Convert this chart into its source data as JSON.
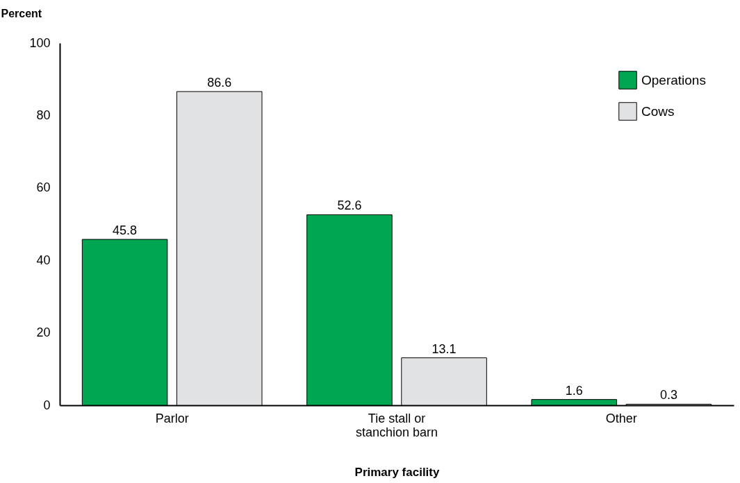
{
  "chart_data": {
    "type": "bar",
    "xlabel": "Primary facility",
    "ylabel": "Percent",
    "categories": [
      "Parlor",
      "Tie stall or stanchion barn",
      "Other"
    ],
    "series": [
      {
        "name": "Operations",
        "color": "#00a651",
        "values": [
          45.8,
          52.6,
          1.6
        ]
      },
      {
        "name": "Cows",
        "color": "#e1e2e4",
        "values": [
          86.6,
          13.1,
          0.3
        ]
      }
    ],
    "ylim": [
      0,
      100
    ],
    "yticks": [
      0,
      20,
      40,
      60,
      80,
      100
    ],
    "grid": false,
    "legend": "top right",
    "data_labels": true
  }
}
